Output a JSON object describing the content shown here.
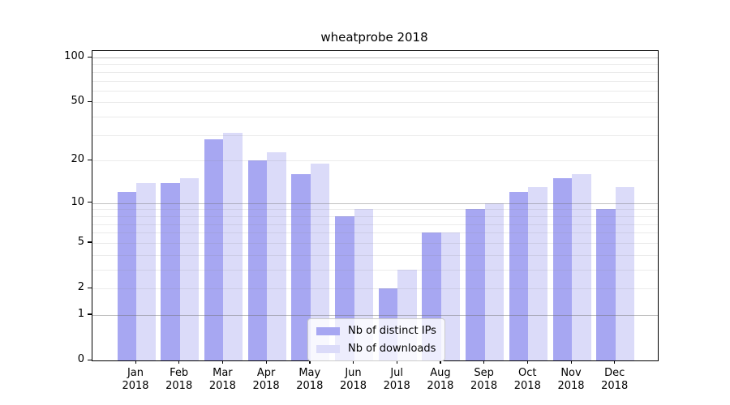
{
  "chart_data": {
    "type": "bar",
    "title": "wheatprobe 2018",
    "categories": [
      "Jan",
      "Feb",
      "Mar",
      "Apr",
      "May",
      "Jun",
      "Jul",
      "Aug",
      "Sep",
      "Oct",
      "Nov",
      "Dec"
    ],
    "x_year": "2018",
    "series": [
      {
        "key": "distinct-ips",
        "name": "Nb of distinct IPs",
        "color": "#a7a7f2",
        "values": [
          12,
          14,
          28,
          20,
          16,
          8,
          2,
          6,
          9,
          12,
          15,
          9
        ]
      },
      {
        "key": "downloads",
        "name": "Nb of downloads",
        "color": "#dbdbf9",
        "values": [
          14,
          15,
          31,
          23,
          19,
          9,
          3,
          6,
          10,
          13,
          16,
          13
        ]
      }
    ],
    "yscale": "log1p",
    "yticks": [
      0,
      1,
      2,
      5,
      10,
      20,
      50,
      100
    ],
    "ylim": [
      0,
      100
    ],
    "grid": true,
    "legend_position": "inside-lower-center"
  }
}
